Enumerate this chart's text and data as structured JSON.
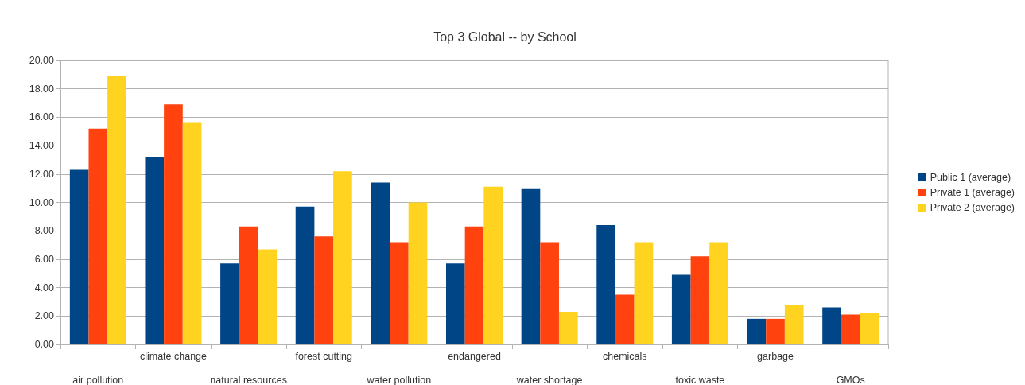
{
  "chart_data": {
    "type": "bar",
    "title": "Top 3 Global -- by School",
    "categories": [
      "air pollution",
      "climate change",
      "natural resources",
      "forest cutting",
      "water pollution",
      "endangered",
      "water shortage",
      "chemicals",
      "toxic waste",
      "garbage",
      "GMOs"
    ],
    "series": [
      {
        "name": "Public 1 (average)",
        "color": "#004586",
        "values": [
          12.3,
          13.2,
          5.7,
          9.7,
          11.4,
          5.7,
          11.0,
          8.4,
          4.9,
          1.8,
          2.6
        ]
      },
      {
        "name": "Private 1 (average)",
        "color": "#ff420e",
        "values": [
          15.2,
          16.9,
          8.3,
          7.6,
          7.2,
          8.3,
          7.2,
          3.5,
          6.2,
          1.8,
          2.1
        ]
      },
      {
        "name": "Private 2 (average)",
        "color": "#ffd320",
        "values": [
          18.9,
          15.6,
          6.7,
          12.2,
          10.0,
          11.1,
          2.3,
          7.2,
          7.2,
          2.8,
          2.2
        ]
      }
    ],
    "ylim": [
      0,
      20
    ],
    "yticks": [
      {
        "value": 0,
        "label": "0.00"
      },
      {
        "value": 2,
        "label": "2.00"
      },
      {
        "value": 4,
        "label": "4.00"
      },
      {
        "value": 6,
        "label": "6.00"
      },
      {
        "value": 8,
        "label": "8.00"
      },
      {
        "value": 10,
        "label": "10.00"
      },
      {
        "value": 12,
        "label": "12.00"
      },
      {
        "value": 14,
        "label": "14.00"
      },
      {
        "value": 16,
        "label": "16.00"
      },
      {
        "value": 18,
        "label": "18.00"
      },
      {
        "value": 20,
        "label": "20.00"
      }
    ],
    "grid": "y",
    "legend": "right"
  }
}
